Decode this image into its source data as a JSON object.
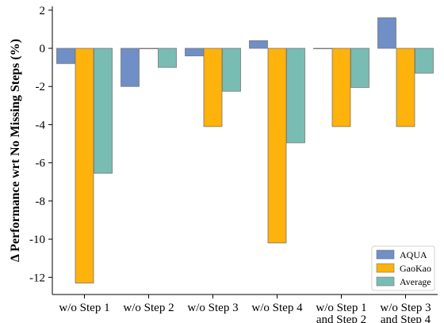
{
  "chart_data": {
    "type": "bar",
    "title": "",
    "xlabel": "",
    "ylabel": "Δ Performance wrt No Missing Steps (%)",
    "ylim": [
      -12.9,
      2.2
    ],
    "yticks": [
      2,
      0,
      -2,
      -4,
      -6,
      -8,
      -10,
      -12
    ],
    "categories": [
      [
        "w/o Step 1"
      ],
      [
        "w/o Step 2"
      ],
      [
        "w/o Step 3"
      ],
      [
        "w/o Step 4"
      ],
      [
        "w/o Step 1",
        "and Step 2"
      ],
      [
        "w/o Step 3",
        "and Step 4"
      ]
    ],
    "series": [
      {
        "name": "AQUA",
        "color": "#6f8fc6",
        "values": [
          -0.8,
          -2.0,
          -0.4,
          0.4,
          0.0,
          1.6
        ]
      },
      {
        "name": "GaoKao",
        "color": "#fdb20c",
        "values": [
          -12.3,
          0.0,
          -4.1,
          -10.2,
          -4.1,
          -4.1
        ]
      },
      {
        "name": "Average",
        "color": "#79bcb3",
        "values": [
          -6.55,
          -1.0,
          -2.25,
          -4.95,
          -2.05,
          -1.3
        ]
      }
    ],
    "grid": false,
    "legend_position": "bottom-right"
  }
}
